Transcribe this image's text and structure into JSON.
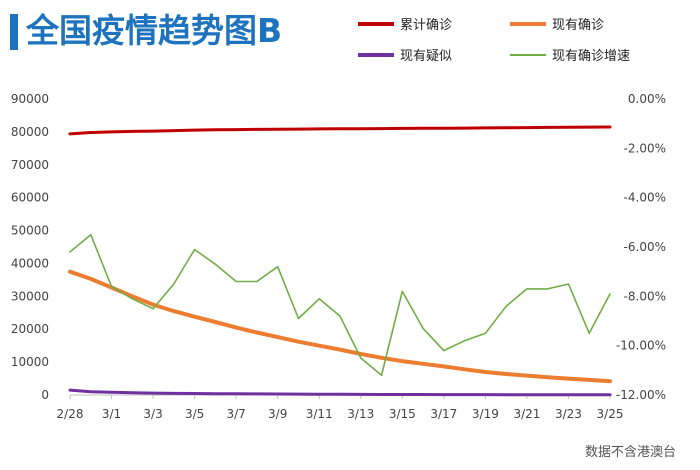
{
  "title": "全国疫情趋势图B",
  "source": "数据不含港澳台",
  "colors": {
    "title": "#1e73be",
    "cumulative": "#c00000",
    "current": "#ed7d31",
    "suspected": "#7030a0",
    "growth": "#70ad47",
    "axis": "#bfbfbf"
  },
  "chart_data": {
    "type": "line",
    "x": [
      "2/28",
      "2/29",
      "3/1",
      "3/2",
      "3/3",
      "3/4",
      "3/5",
      "3/6",
      "3/7",
      "3/8",
      "3/9",
      "3/10",
      "3/11",
      "3/12",
      "3/13",
      "3/14",
      "3/15",
      "3/16",
      "3/17",
      "3/18",
      "3/19",
      "3/20",
      "3/21",
      "3/22",
      "3/23",
      "3/24",
      "3/25"
    ],
    "x_ticks": [
      "2/28",
      "3/1",
      "3/3",
      "3/5",
      "3/7",
      "3/9",
      "3/11",
      "3/13",
      "3/15",
      "3/17",
      "3/19",
      "3/21",
      "3/23",
      "3/25"
    ],
    "y_left": {
      "lim": [
        0,
        90000
      ],
      "ticks": [
        "0",
        "10000",
        "20000",
        "30000",
        "40000",
        "50000",
        "60000",
        "70000",
        "80000",
        "90000"
      ]
    },
    "y_right": {
      "lim": [
        -12,
        0
      ],
      "ticks": [
        "0.00%",
        "-2.00%",
        "-4.00%",
        "-6.00%",
        "-8.00%",
        "-10.00%",
        "-12.00%"
      ]
    },
    "legend_position": "top-right",
    "series": [
      {
        "name": "累计确诊",
        "axis": "left",
        "color": "#c00000",
        "values": [
          79400,
          79800,
          80000,
          80150,
          80250,
          80400,
          80550,
          80650,
          80700,
          80750,
          80800,
          80850,
          80900,
          80950,
          80980,
          81000,
          81050,
          81080,
          81100,
          81150,
          81200,
          81250,
          81300,
          81350,
          81400,
          81450,
          81500
        ]
      },
      {
        "name": "现有确诊",
        "axis": "left",
        "color": "#ed7d31",
        "values": [
          37500,
          35300,
          32700,
          30000,
          27500,
          25500,
          23800,
          22200,
          20500,
          19000,
          17600,
          16200,
          15000,
          13800,
          12500,
          11300,
          10300,
          9500,
          8700,
          7800,
          7000,
          6400,
          5900,
          5400,
          5000,
          4600,
          4200
        ]
      },
      {
        "name": "现有疑似",
        "axis": "left",
        "color": "#7030a0",
        "values": [
          1500,
          1000,
          850,
          700,
          580,
          500,
          450,
          400,
          380,
          340,
          300,
          260,
          230,
          200,
          180,
          160,
          150,
          140,
          130,
          120,
          110,
          100,
          95,
          90,
          85,
          80,
          75
        ]
      },
      {
        "name": "现有确诊增速",
        "axis": "right",
        "color": "#70ad47",
        "values": [
          -6.2,
          -5.5,
          -7.6,
          -8.1,
          -8.5,
          -7.5,
          -6.1,
          -6.7,
          -7.4,
          -7.4,
          -6.8,
          -8.9,
          -8.1,
          -8.8,
          -10.5,
          -11.2,
          -7.8,
          -9.3,
          -10.2,
          -9.8,
          -9.5,
          -8.4,
          -7.7,
          -7.7,
          -7.5,
          -9.5,
          -7.9
        ]
      }
    ]
  }
}
